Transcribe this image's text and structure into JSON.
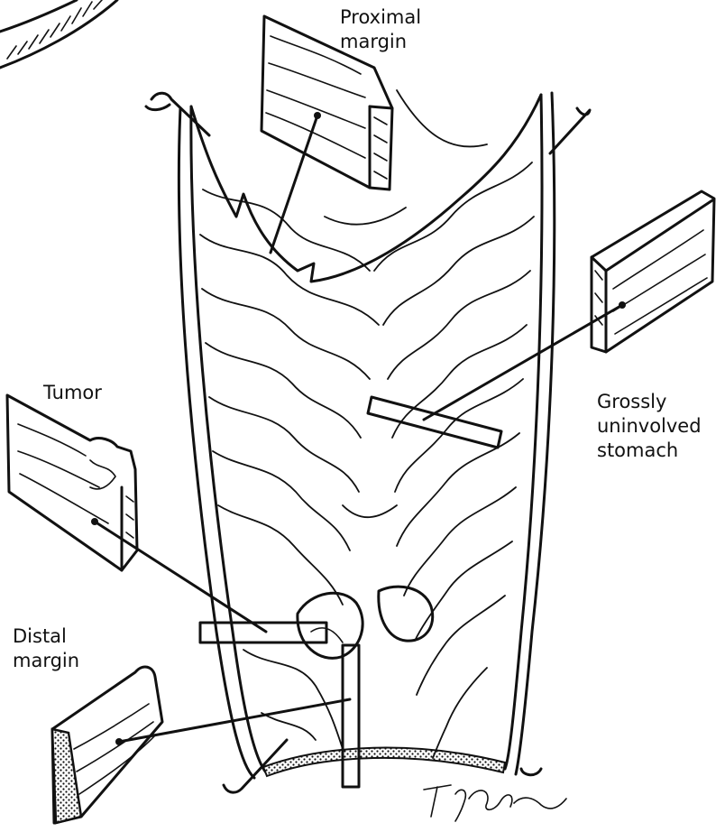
{
  "labels": {
    "proximal_margin": [
      "Proximal",
      "margin"
    ],
    "tumor": [
      "Tumor"
    ],
    "grossly_uninvolved_stomach": [
      "Grossly",
      "uninvolved",
      "stomach"
    ],
    "distal_margin": [
      "Distal",
      "margin"
    ]
  },
  "colors": {
    "ink": "#111111",
    "paper": "#ffffff"
  }
}
